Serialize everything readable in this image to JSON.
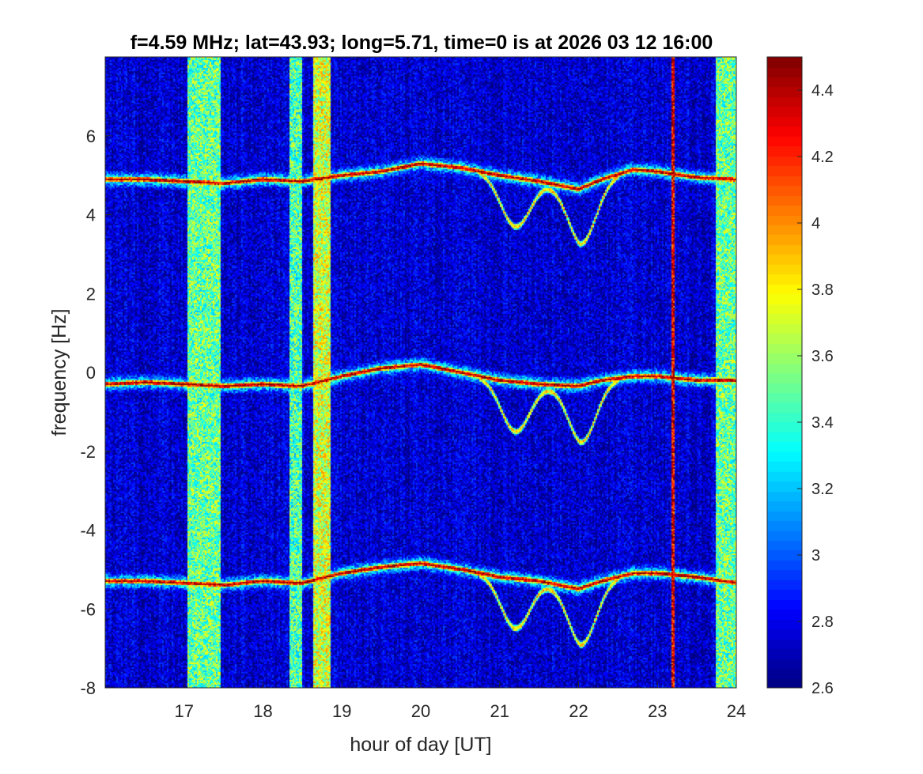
{
  "chart_data": {
    "type": "heatmap",
    "title": "f=4.59 MHz;  lat=43.93; long=5.71, time=0 is at 2026 03 12 16:00",
    "xlabel": "hour of day [UT]",
    "ylabel": "frequency [Hz]",
    "xlim": [
      16,
      24
    ],
    "ylim": [
      -8,
      8
    ],
    "xticks": [
      17,
      18,
      19,
      20,
      21,
      22,
      23,
      24
    ],
    "yticks": [
      -8,
      -6,
      -4,
      -2,
      0,
      2,
      4,
      6
    ],
    "x_tick_labels": [
      "17",
      "18",
      "19",
      "20",
      "21",
      "22",
      "23",
      "24"
    ],
    "y_tick_labels": [
      "-8",
      "-6",
      "-4",
      "-2",
      "0",
      "2",
      "4",
      "6"
    ],
    "colorbar": {
      "colormap": "jet",
      "range": [
        2.6,
        4.5
      ],
      "ticks": [
        2.6,
        2.8,
        3,
        3.2,
        3.4,
        3.6,
        3.8,
        4,
        4.2,
        4.4
      ],
      "tick_labels": [
        "2.6",
        "2.8",
        "3",
        "3.2",
        "3.4",
        "3.6",
        "3.8",
        "4",
        "4.2",
        "4.4"
      ]
    },
    "background_level": 2.75,
    "doppler_traces": [
      {
        "offset_hz": 5.0,
        "points": [
          [
            16,
            4.9
          ],
          [
            16.5,
            4.9
          ],
          [
            17,
            4.85
          ],
          [
            17.5,
            4.8
          ],
          [
            18,
            4.9
          ],
          [
            18.5,
            4.85
          ],
          [
            19,
            5.0
          ],
          [
            19.5,
            5.1
          ],
          [
            20,
            5.3
          ],
          [
            20.5,
            5.2
          ],
          [
            21,
            5.0
          ],
          [
            21.5,
            4.85
          ],
          [
            22,
            4.65
          ],
          [
            22.3,
            4.9
          ],
          [
            22.7,
            5.15
          ],
          [
            23,
            5.1
          ],
          [
            23.5,
            4.95
          ],
          [
            24,
            4.9
          ]
        ]
      },
      {
        "offset_hz": 0.0,
        "points": [
          [
            16,
            -0.3
          ],
          [
            16.5,
            -0.25
          ],
          [
            17,
            -0.3
          ],
          [
            17.5,
            -0.35
          ],
          [
            18,
            -0.3
          ],
          [
            18.5,
            -0.35
          ],
          [
            19,
            -0.1
          ],
          [
            19.5,
            0.1
          ],
          [
            20,
            0.2
          ],
          [
            20.5,
            0.0
          ],
          [
            21,
            -0.2
          ],
          [
            21.5,
            -0.3
          ],
          [
            22,
            -0.35
          ],
          [
            22.3,
            -0.2
          ],
          [
            22.7,
            -0.1
          ],
          [
            23,
            -0.1
          ],
          [
            23.5,
            -0.2
          ],
          [
            24,
            -0.2
          ]
        ]
      },
      {
        "offset_hz": -5.4,
        "points": [
          [
            16,
            -5.3
          ],
          [
            16.5,
            -5.3
          ],
          [
            17,
            -5.35
          ],
          [
            17.5,
            -5.4
          ],
          [
            18,
            -5.3
          ],
          [
            18.5,
            -5.35
          ],
          [
            19,
            -5.1
          ],
          [
            19.5,
            -4.95
          ],
          [
            20,
            -4.85
          ],
          [
            20.5,
            -5.0
          ],
          [
            21,
            -5.2
          ],
          [
            21.5,
            -5.3
          ],
          [
            22,
            -5.5
          ],
          [
            22.3,
            -5.3
          ],
          [
            22.7,
            -5.1
          ],
          [
            23,
            -5.1
          ],
          [
            23.5,
            -5.2
          ],
          [
            24,
            -5.35
          ]
        ]
      }
    ],
    "dips": [
      {
        "x": 21.2,
        "depth_hz": 1.4
      },
      {
        "x": 22.05,
        "depth_hz": 1.6
      }
    ],
    "vertical_bands": [
      {
        "x_start": 17.05,
        "x_end": 17.45,
        "level": 3.5
      },
      {
        "x_start": 18.35,
        "x_end": 18.5,
        "level": 3.45
      },
      {
        "x_start": 18.65,
        "x_end": 18.85,
        "level": 3.7
      },
      {
        "x_start": 23.75,
        "x_end": 24.0,
        "level": 3.5
      }
    ],
    "vertical_lines": [
      {
        "x": 23.2,
        "level": 4.3
      }
    ]
  }
}
